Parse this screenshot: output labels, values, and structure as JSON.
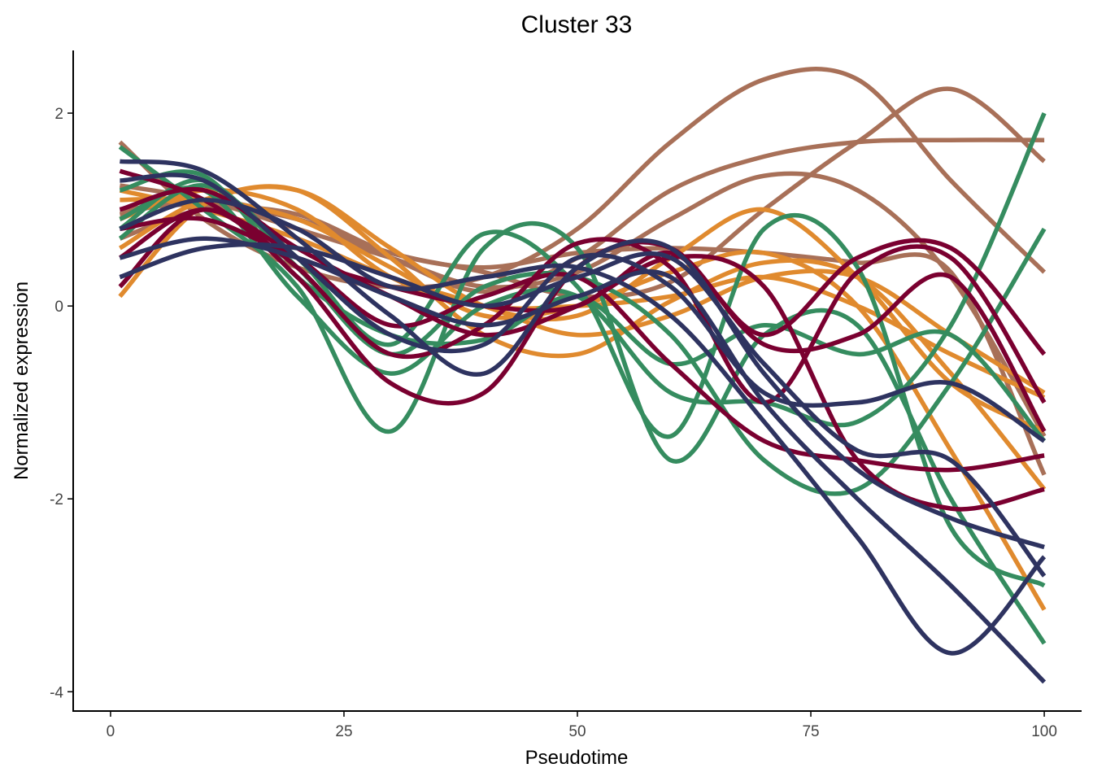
{
  "chart_data": {
    "type": "line",
    "title": "Cluster 33",
    "xlabel": "Pseudotime",
    "ylabel": "Normalized expression",
    "xlim": [
      -4,
      104
    ],
    "ylim": [
      -4.2,
      2.65
    ],
    "xticks": [
      0,
      25,
      50,
      75,
      100
    ],
    "xtick_labels": [
      "0",
      "25",
      "50",
      "75",
      "100"
    ],
    "yticks": [
      -4,
      -2,
      0,
      2
    ],
    "ytick_labels": [
      "-4",
      "-2",
      "0",
      "2"
    ],
    "grid": false,
    "legend": "none",
    "x": [
      1,
      10,
      20,
      30,
      40,
      50,
      60,
      70,
      80,
      90,
      100
    ],
    "series": [
      {
        "color": "#A87058",
        "values": [
          1.7,
          0.9,
          0.4,
          0.2,
          0.3,
          0.8,
          1.7,
          2.35,
          2.35,
          1.3,
          0.35
        ]
      },
      {
        "color": "#A87058",
        "values": [
          0.95,
          1.1,
          0.9,
          0.5,
          0.15,
          0.5,
          1.2,
          1.55,
          1.7,
          1.72,
          1.72
        ]
      },
      {
        "color": "#A87058",
        "values": [
          1.25,
          1.1,
          0.8,
          0.5,
          0.2,
          0.35,
          0.9,
          1.35,
          1.2,
          0.3,
          -1.35
        ]
      },
      {
        "color": "#A87058",
        "values": [
          1.0,
          1.05,
          0.9,
          0.55,
          0.35,
          0.1,
          0.25,
          1.0,
          1.7,
          2.25,
          1.5
        ]
      },
      {
        "color": "#A87058",
        "values": [
          0.7,
          1.0,
          0.95,
          0.55,
          0.4,
          0.55,
          0.6,
          0.55,
          0.45,
          0.35,
          -1.75
        ]
      },
      {
        "color": "#E08A2E",
        "values": [
          0.1,
          1.05,
          1.2,
          0.6,
          0.0,
          -0.1,
          0.5,
          1.0,
          0.3,
          -0.8,
          -1.3
        ]
      },
      {
        "color": "#E08A2E",
        "values": [
          0.6,
          1.1,
          1.2,
          0.5,
          -0.3,
          -0.5,
          0.05,
          0.45,
          0.3,
          -0.7,
          -1.9
        ]
      },
      {
        "color": "#E08A2E",
        "values": [
          0.9,
          1.2,
          1.0,
          0.3,
          0.0,
          0.0,
          0.1,
          0.3,
          0.0,
          -0.5,
          -0.95
        ]
      },
      {
        "color": "#E08A2E",
        "values": [
          1.2,
          1.0,
          0.7,
          0.3,
          0.0,
          -0.3,
          -0.1,
          0.3,
          0.3,
          -0.3,
          -0.9
        ]
      },
      {
        "color": "#E08A2E",
        "values": [
          1.1,
          1.1,
          0.9,
          0.4,
          -0.1,
          0.0,
          0.35,
          0.55,
          0.0,
          -1.5,
          -3.15
        ]
      },
      {
        "color": "#358C5F",
        "values": [
          1.65,
          1.0,
          0.2,
          -1.3,
          0.6,
          0.6,
          -1.6,
          -0.3,
          -0.2,
          -2.0,
          -3.5
        ]
      },
      {
        "color": "#358C5F",
        "values": [
          0.7,
          1.25,
          0.5,
          -0.4,
          0.75,
          0.2,
          -1.35,
          0.8,
          0.4,
          -2.3,
          -2.9
        ]
      },
      {
        "color": "#358C5F",
        "values": [
          0.9,
          1.2,
          0.1,
          -0.7,
          0.0,
          0.1,
          -0.9,
          -1.0,
          -1.2,
          -0.2,
          2.0
        ]
      },
      {
        "color": "#358C5F",
        "values": [
          1.2,
          1.35,
          0.3,
          -0.3,
          -0.35,
          0.1,
          -0.6,
          -0.2,
          -0.5,
          -0.3,
          -1.4
        ]
      },
      {
        "color": "#358C5F",
        "values": [
          0.8,
          1.3,
          0.4,
          -0.5,
          0.2,
          0.3,
          -0.3,
          -1.6,
          -1.9,
          -0.8,
          0.8
        ]
      },
      {
        "color": "#7A0030",
        "values": [
          0.2,
          1.0,
          0.3,
          -0.8,
          -0.9,
          0.4,
          0.6,
          -0.4,
          -0.3,
          0.3,
          -1.3
        ]
      },
      {
        "color": "#7A0030",
        "values": [
          1.4,
          1.1,
          0.4,
          -0.5,
          -0.2,
          0.65,
          0.4,
          -1.0,
          0.35,
          0.5,
          -1.0
        ]
      },
      {
        "color": "#7A0030",
        "values": [
          0.5,
          1.0,
          0.5,
          -0.2,
          0.1,
          0.3,
          -0.6,
          -1.4,
          -1.6,
          -1.7,
          -1.55
        ]
      },
      {
        "color": "#7A0030",
        "values": [
          1.0,
          1.2,
          0.6,
          0.1,
          -0.3,
          0.0,
          0.5,
          0.2,
          -1.6,
          -2.1,
          -1.9
        ]
      },
      {
        "color": "#7A0030",
        "values": [
          0.8,
          0.9,
          0.5,
          0.2,
          0.0,
          0.0,
          0.55,
          -0.3,
          0.5,
          0.6,
          -0.5
        ]
      },
      {
        "color": "#2E3360",
        "values": [
          1.5,
          1.4,
          0.7,
          -0.1,
          -0.7,
          0.4,
          0.6,
          -0.7,
          -1.7,
          -2.2,
          -2.5
        ]
      },
      {
        "color": "#2E3360",
        "values": [
          1.3,
          1.3,
          0.5,
          -0.3,
          -0.4,
          0.5,
          0.2,
          -0.9,
          -1.0,
          -0.8,
          -1.4
        ]
      },
      {
        "color": "#2E3360",
        "values": [
          0.5,
          0.7,
          0.5,
          0.1,
          -0.2,
          0.1,
          0.3,
          -1.0,
          -2.0,
          -2.9,
          -3.9
        ]
      },
      {
        "color": "#2E3360",
        "values": [
          0.8,
          1.1,
          0.8,
          0.2,
          0.3,
          0.4,
          -0.1,
          -1.2,
          -2.4,
          -3.6,
          -2.6
        ]
      },
      {
        "color": "#2E3360",
        "values": [
          0.3,
          0.6,
          0.6,
          0.3,
          0.0,
          0.3,
          0.5,
          -0.6,
          -1.5,
          -1.6,
          -2.8
        ]
      }
    ]
  }
}
